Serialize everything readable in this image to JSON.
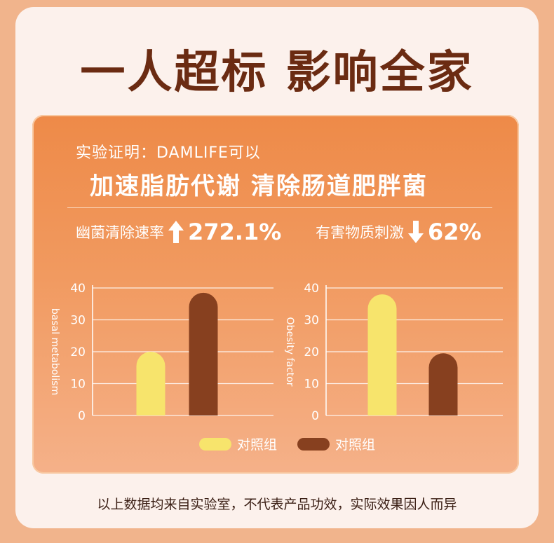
{
  "headline": "一人超标 影响全家",
  "subtitle": "实验证明：DAMLIFE可以",
  "claim": "加速脂肪代谢 清除肠道肥胖菌",
  "stats": [
    {
      "label": "幽菌清除速率",
      "direction": "up",
      "value": "272.1%"
    },
    {
      "label": "有害物质刺激",
      "direction": "down",
      "value": "62%"
    }
  ],
  "colors": {
    "control": "#f7e46c",
    "treatment": "#87401f",
    "headline": "#6b2b12"
  },
  "chart_data": [
    {
      "type": "bar",
      "ylabel": "basal metabolism",
      "ylim": [
        0,
        40
      ],
      "yticks": [
        "0",
        "10",
        "20",
        "30",
        "40"
      ],
      "grid": true,
      "series": [
        {
          "name": "对照组",
          "values": [
            20
          ]
        },
        {
          "name": "对照组",
          "values": [
            38.5
          ]
        }
      ]
    },
    {
      "type": "bar",
      "ylabel": "Obesity factor",
      "ylim": [
        0,
        40
      ],
      "yticks": [
        "0",
        "10",
        "20",
        "30",
        "40"
      ],
      "grid": true,
      "series": [
        {
          "name": "对照组",
          "values": [
            38
          ]
        },
        {
          "name": "对照组",
          "values": [
            19.5
          ]
        }
      ]
    }
  ],
  "legend": [
    {
      "label": "对照组"
    },
    {
      "label": "对照组"
    }
  ],
  "footnote": "以上数据均来自实验室，不代表产品功效，实际效果因人而异"
}
